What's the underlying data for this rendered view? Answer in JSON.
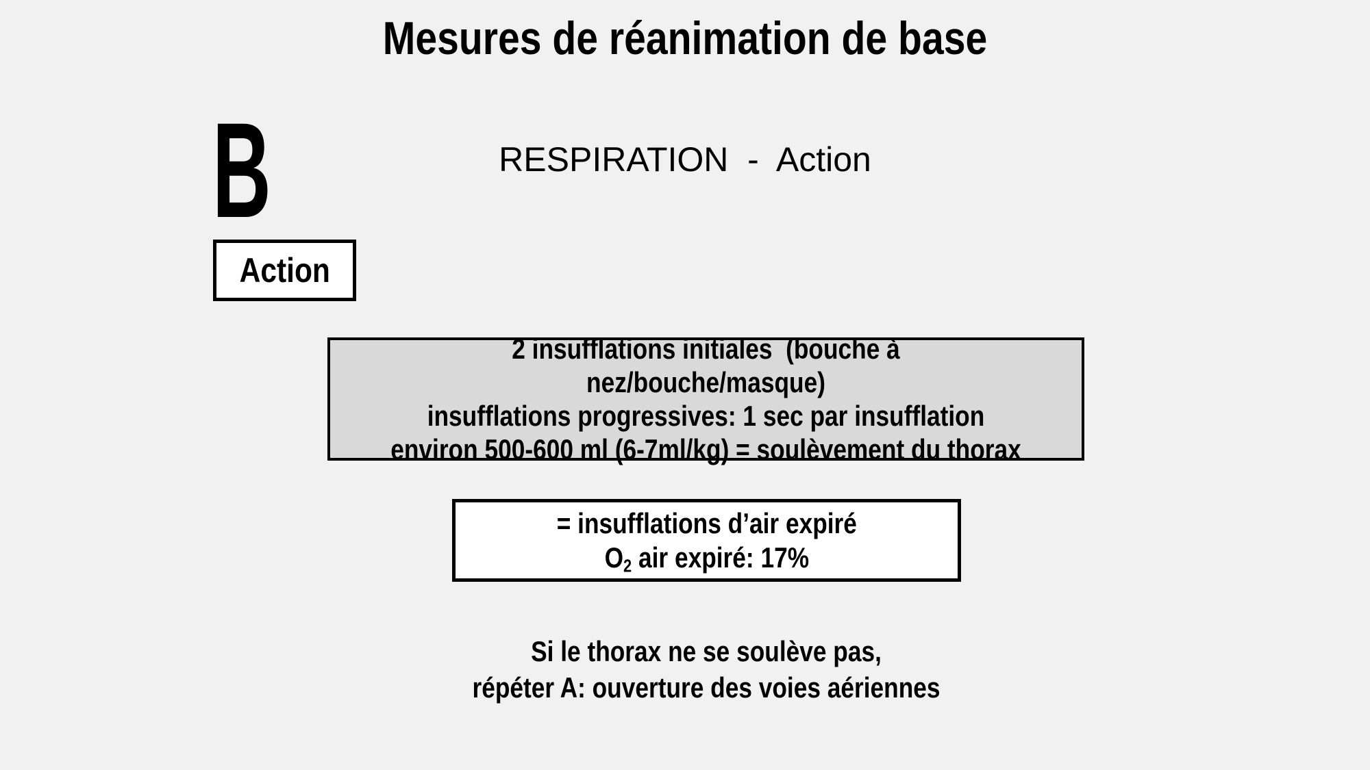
{
  "slide": {
    "title": "Mesures de réanimation de base",
    "section_letter": "B",
    "heading": "RESPIRATION  -  Action",
    "action_box_label": "Action",
    "instruction_box": {
      "lines": [
        "2 insufflations initiales  (bouche à nez/bouche/masque)",
        "insufflations progressives: 1 sec par insufflation",
        "environ 500-600 ml (6-7ml/kg) = soulèvement du thorax"
      ]
    },
    "info_box": {
      "line1": "= insufflations d’air expiré",
      "o2_base": "O",
      "o2_sub": "2",
      "o2_rest": " air expiré: 17%"
    },
    "note": {
      "line1": "Si le thorax ne se soulève pas,",
      "line2": "répéter A: ouverture des voies aériennes"
    },
    "colors": {
      "background": "#F1F1F1",
      "instruction_box_fill": "#D9D9D9",
      "box_border": "#000000",
      "text": "#000000"
    }
  }
}
